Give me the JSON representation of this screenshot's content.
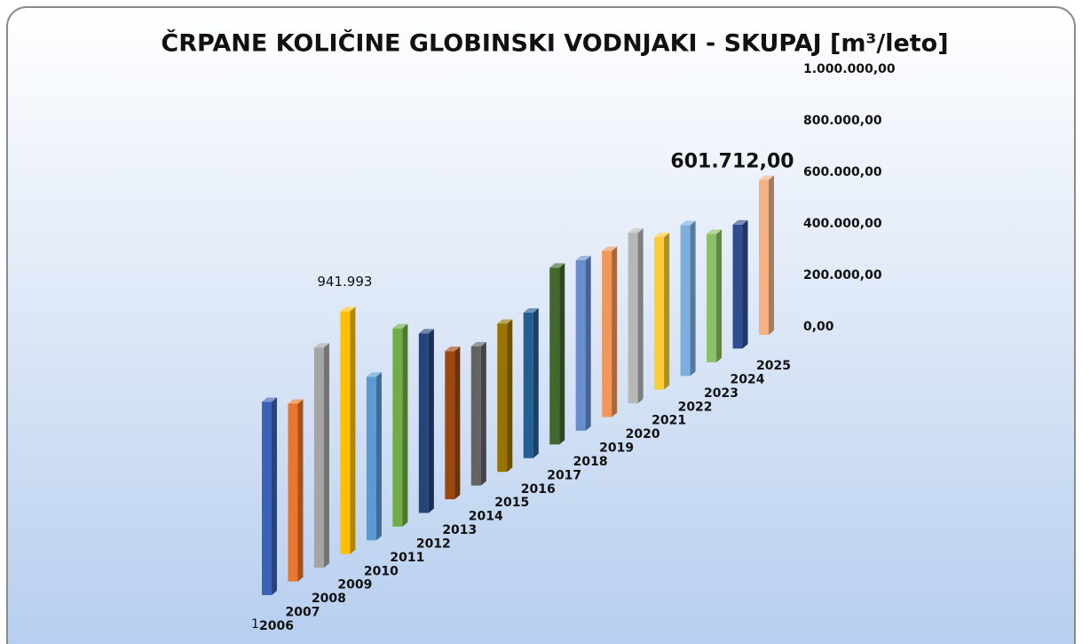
{
  "chart_data": {
    "type": "bar3d",
    "title": "ČRPANE KOLIČINE GLOBINSKI VODNJAKI - SKUPAJ [m³/leto]",
    "categories": [
      "2006",
      "2007",
      "2008",
      "2009",
      "2010",
      "2011",
      "2012",
      "2013",
      "2014",
      "2015",
      "2016",
      "2017",
      "2018",
      "2019",
      "2020",
      "2021",
      "2022",
      "2023",
      "2024",
      "2025"
    ],
    "values": [
      750000,
      690000,
      855000,
      941993,
      635000,
      770000,
      697000,
      575000,
      540000,
      575000,
      565000,
      686000,
      662000,
      645000,
      662000,
      592000,
      585000,
      498000,
      481000,
      601712
    ],
    "value_labels": [
      null,
      null,
      null,
      "941.993",
      null,
      null,
      null,
      null,
      null,
      null,
      null,
      null,
      null,
      null,
      null,
      null,
      null,
      null,
      null,
      "601.712,00"
    ],
    "colors": [
      "#3a62b8",
      "#e8762c",
      "#a5a5a5",
      "#ffc000",
      "#5b9bd5",
      "#70ad47",
      "#264478",
      "#9e480e",
      "#636363",
      "#997300",
      "#255e91",
      "#43682b",
      "#698ed0",
      "#f1975a",
      "#b7b7b7",
      "#ffcd33",
      "#7cafdd",
      "#8cc168",
      "#2f4e8f",
      "#f4b183"
    ],
    "ylim": [
      0,
      1000000
    ],
    "yticks": [
      {
        "value": 0,
        "label": "0,00"
      },
      {
        "value": 200000,
        "label": "200.000,00"
      },
      {
        "value": 400000,
        "label": "400.000,00"
      },
      {
        "value": 600000,
        "label": "600.000,00"
      },
      {
        "value": 800000,
        "label": "800.000,00"
      },
      {
        "value": 1000000,
        "label": "1.000.000,00"
      }
    ],
    "annotations": [
      "1"
    ]
  }
}
